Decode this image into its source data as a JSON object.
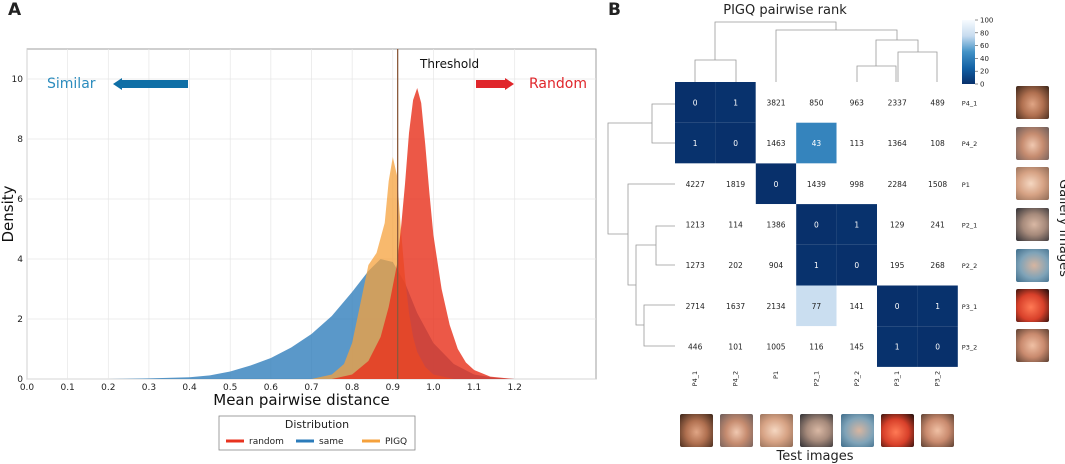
{
  "panel_a": {
    "label": "A",
    "annotations": {
      "similar": "Similar",
      "random": "Random",
      "threshold": "Threshold",
      "threshold_x": 0.912
    },
    "legend": {
      "title": "Distribution",
      "entries": [
        "random",
        "same",
        "PIGQ"
      ]
    }
  },
  "panel_b": {
    "label": "B",
    "title": "PIGQ pairwise rank",
    "gallery_label": "Gallery images",
    "test_label": "Test images",
    "colorbar": {
      "min": 0,
      "max": 100,
      "ticks": [
        "100",
        "80",
        "60",
        "40",
        "20",
        "0"
      ]
    }
  },
  "colors": {
    "random": "#e8331f",
    "same": "#2b7bba",
    "pigq": "#f5a13c",
    "matrix_low": "#08306b",
    "threshold_line": "#8b5a3c"
  },
  "chart_data": [
    {
      "type": "area",
      "title": "",
      "xlabel": "Mean pairwise distance",
      "ylabel": "Density",
      "xlim": [
        0.0,
        1.4
      ],
      "ylim": [
        0,
        11
      ],
      "xticks": [
        "0.0",
        "0.1",
        "0.2",
        "0.3",
        "0.4",
        "0.5",
        "0.6",
        "0.7",
        "0.8",
        "0.9",
        "1.0",
        "1.1",
        "1.2"
      ],
      "yticks": [
        "0",
        "2",
        "4",
        "6",
        "8",
        "10"
      ],
      "series": [
        {
          "name": "same",
          "x": [
            0.2,
            0.3,
            0.4,
            0.45,
            0.5,
            0.55,
            0.6,
            0.65,
            0.7,
            0.75,
            0.8,
            0.84,
            0.87,
            0.9,
            0.93,
            0.96,
            1.0,
            1.05,
            1.1,
            1.15,
            1.2
          ],
          "y": [
            0,
            0.02,
            0.06,
            0.12,
            0.25,
            0.45,
            0.7,
            1.05,
            1.5,
            2.1,
            2.9,
            3.6,
            4.0,
            3.9,
            3.2,
            2.2,
            1.2,
            0.5,
            0.15,
            0.04,
            0
          ]
        },
        {
          "name": "PIGQ",
          "x": [
            0.7,
            0.75,
            0.78,
            0.8,
            0.82,
            0.84,
            0.86,
            0.88,
            0.89,
            0.9,
            0.91,
            0.92,
            0.93,
            0.94,
            0.95,
            0.96,
            0.98,
            1.0,
            1.05
          ],
          "y": [
            0,
            0.15,
            0.5,
            1.2,
            2.5,
            3.8,
            4.2,
            5.2,
            6.6,
            7.4,
            6.8,
            5.0,
            3.4,
            2.2,
            1.4,
            0.9,
            0.4,
            0.15,
            0
          ]
        },
        {
          "name": "random",
          "x": [
            0.75,
            0.8,
            0.84,
            0.87,
            0.89,
            0.91,
            0.92,
            0.93,
            0.94,
            0.95,
            0.96,
            0.97,
            0.98,
            0.99,
            1.0,
            1.02,
            1.04,
            1.06,
            1.08,
            1.1,
            1.14,
            1.2
          ],
          "y": [
            0,
            0.15,
            0.6,
            1.4,
            2.4,
            3.8,
            5.0,
            6.5,
            8.2,
            9.3,
            9.7,
            9.2,
            7.8,
            6.2,
            4.8,
            3.0,
            1.8,
            1.0,
            0.55,
            0.3,
            0.08,
            0
          ]
        }
      ]
    },
    {
      "type": "heatmap",
      "title": "PIGQ pairwise rank",
      "row_labels": [
        "P4_1",
        "P4_2",
        "P1",
        "P2_1",
        "P2_2",
        "P3_1",
        "P3_2"
      ],
      "col_labels": [
        "P4_1",
        "P4_2",
        "P1",
        "P2_1",
        "P2_2",
        "P3_1",
        "P3_2"
      ],
      "values": [
        [
          0,
          1,
          3821,
          850,
          963,
          2337,
          489
        ],
        [
          1,
          0,
          1463,
          43,
          113,
          1364,
          108
        ],
        [
          4227,
          1819,
          0,
          1439,
          998,
          2284,
          1508
        ],
        [
          1213,
          114,
          1386,
          0,
          1,
          129,
          241
        ],
        [
          1273,
          202,
          904,
          1,
          0,
          195,
          268
        ],
        [
          2714,
          1637,
          2134,
          77,
          141,
          0,
          1
        ],
        [
          446,
          101,
          1005,
          116,
          145,
          1,
          0
        ]
      ],
      "color_range": [
        0,
        100
      ]
    }
  ]
}
